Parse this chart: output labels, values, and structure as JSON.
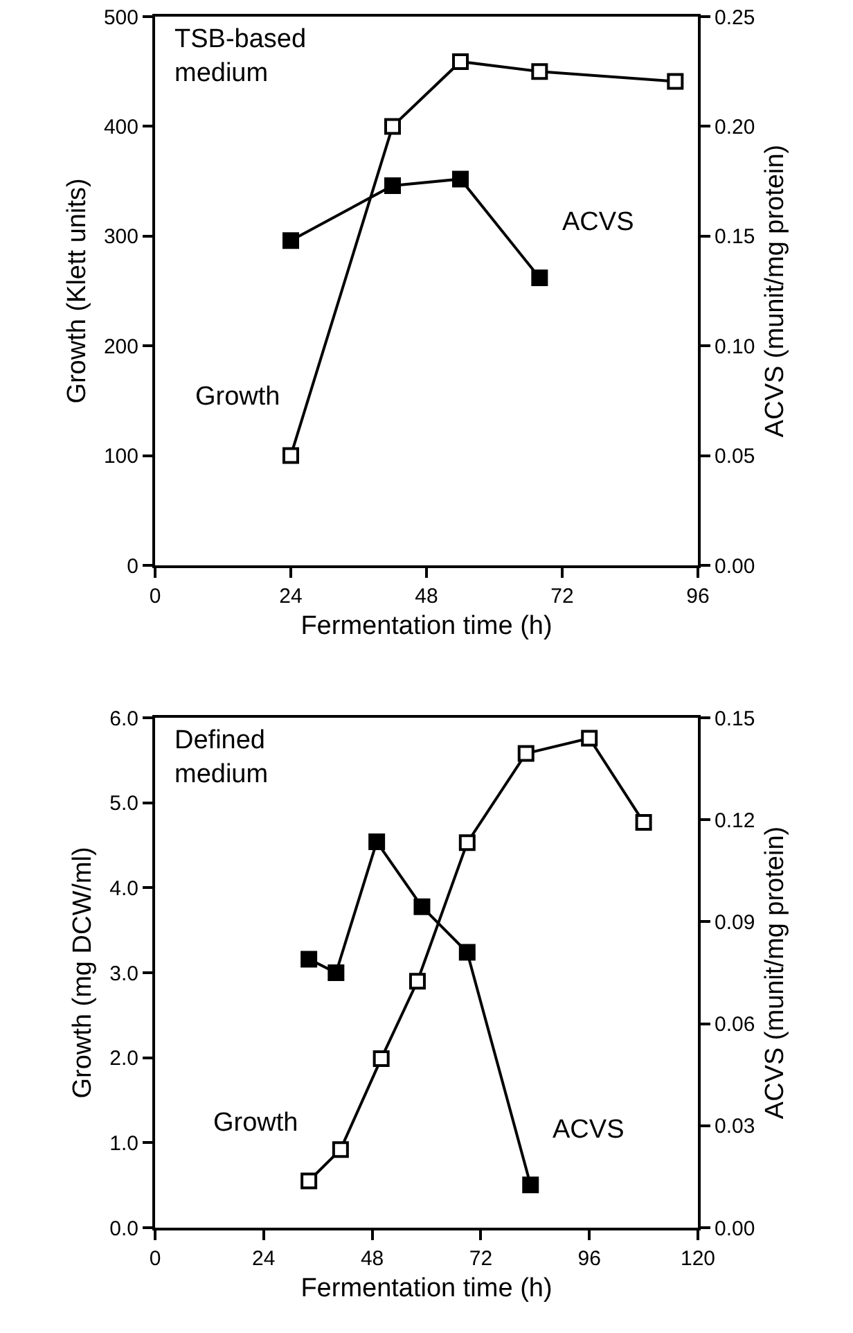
{
  "chart_data": [
    {
      "type": "line",
      "xlabel": "Fermentation time (h)",
      "ylabel": "Growth (Klett units)",
      "y2label": "ACVS (munit/mg protein)",
      "xlim": [
        0,
        96
      ],
      "xticks": [
        0,
        24,
        48,
        72,
        96
      ],
      "ylim": [
        0,
        500
      ],
      "yticks": [
        0,
        100,
        200,
        300,
        400,
        500
      ],
      "y2lim": [
        0,
        0.25
      ],
      "y2ticks": [
        {
          "value": 0,
          "label": "0.00"
        },
        {
          "value": 0.05,
          "label": "0.05"
        },
        {
          "value": 0.1,
          "label": "0.10"
        },
        {
          "value": 0.15,
          "label": "0.15"
        },
        {
          "value": 0.2,
          "label": "0.20"
        },
        {
          "value": 0.25,
          "label": "0.25"
        }
      ],
      "marker": "square",
      "grid": false,
      "legend": false,
      "series": [
        {
          "name": "Growth",
          "color": "#000000",
          "x": [
            24,
            42,
            54,
            68,
            92
          ],
          "values": [
            100,
            400,
            459,
            450,
            441
          ]
        },
        {
          "name": "ACVS",
          "color": "#000000",
          "axis": "y2",
          "x": [
            24,
            42,
            54,
            68
          ],
          "values": [
            0.148,
            0.173,
            0.176,
            0.131
          ]
        }
      ],
      "annotations": [
        "TSB-based\nmedium"
      ]
    },
    {
      "type": "line",
      "xlabel": "Fermentation time (h)",
      "ylabel": "Growth (mg DCW/ml)",
      "y2label": "ACVS (munit/mg protein)",
      "xlim": [
        0,
        120
      ],
      "xticks": [
        0,
        24,
        48,
        72,
        96,
        120
      ],
      "ylim": [
        0,
        6
      ],
      "yticks": [
        {
          "value": 0,
          "label": "0.0"
        },
        {
          "value": 1,
          "label": "1.0"
        },
        {
          "value": 2,
          "label": "2.0"
        },
        {
          "value": 3,
          "label": "3.0"
        },
        {
          "value": 4,
          "label": "4.0"
        },
        {
          "value": 5,
          "label": "5.0"
        },
        {
          "value": 6,
          "label": "6.0"
        }
      ],
      "y2lim": [
        0,
        0.15
      ],
      "y2ticks": [
        {
          "value": 0,
          "label": "0.00"
        },
        {
          "value": 0.03,
          "label": "0.03"
        },
        {
          "value": 0.06,
          "label": "0.06"
        },
        {
          "value": 0.09,
          "label": "0.09"
        },
        {
          "value": 0.12,
          "label": "0.12"
        },
        {
          "value": 0.15,
          "label": "0.15"
        }
      ],
      "marker": "square",
      "grid": false,
      "legend": false,
      "series": [
        {
          "name": "Growth",
          "color": "#000000",
          "x": [
            34,
            41,
            50,
            58,
            69,
            82,
            96,
            108
          ],
          "values": [
            0.55,
            0.92,
            1.99,
            2.9,
            4.53,
            5.58,
            5.76,
            4.77
          ]
        },
        {
          "name": "ACVS",
          "color": "#000000",
          "axis": "y2",
          "x": [
            34,
            40,
            49,
            59,
            69,
            83
          ],
          "values": [
            0.079,
            0.075,
            0.1135,
            0.0944,
            0.081,
            0.0126
          ]
        }
      ],
      "annotations": [
        "Defined\nmedium"
      ]
    }
  ]
}
